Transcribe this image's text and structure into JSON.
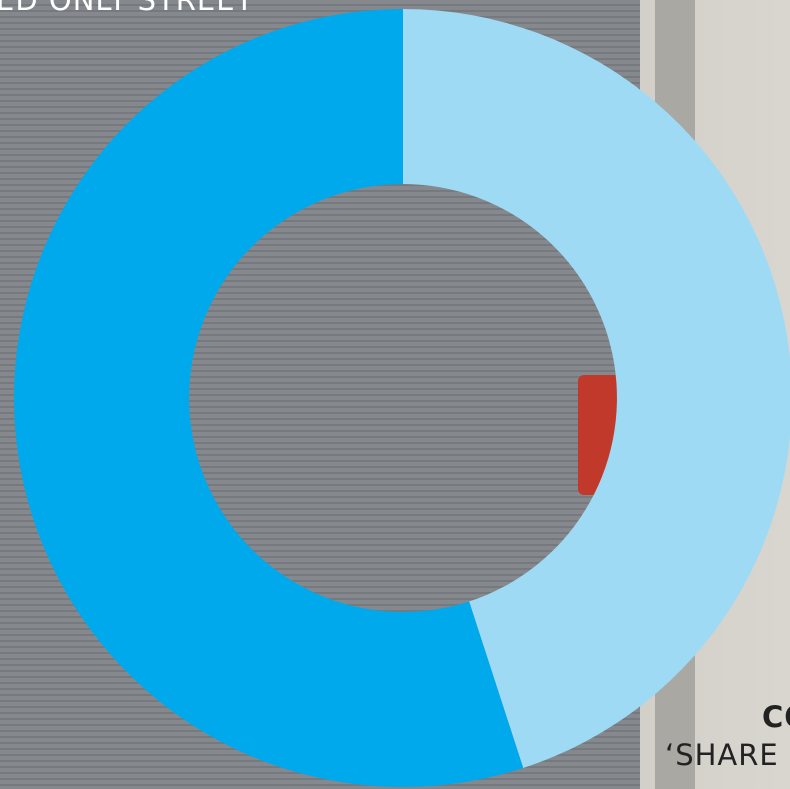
{
  "chart_data": {
    "type": "doughnut",
    "categories": [
      null,
      null
    ],
    "values": [
      45,
      55
    ],
    "colors": [
      "#9fdaf5",
      "#00a9ec"
    ],
    "start_angle": 0,
    "direction": "clockwise",
    "hole": 0.55
  },
  "captions": {
    "top_left": "ED ONLY STREET",
    "bottom_right_bold": "CO",
    "bottom_right": "‘SHARE"
  }
}
